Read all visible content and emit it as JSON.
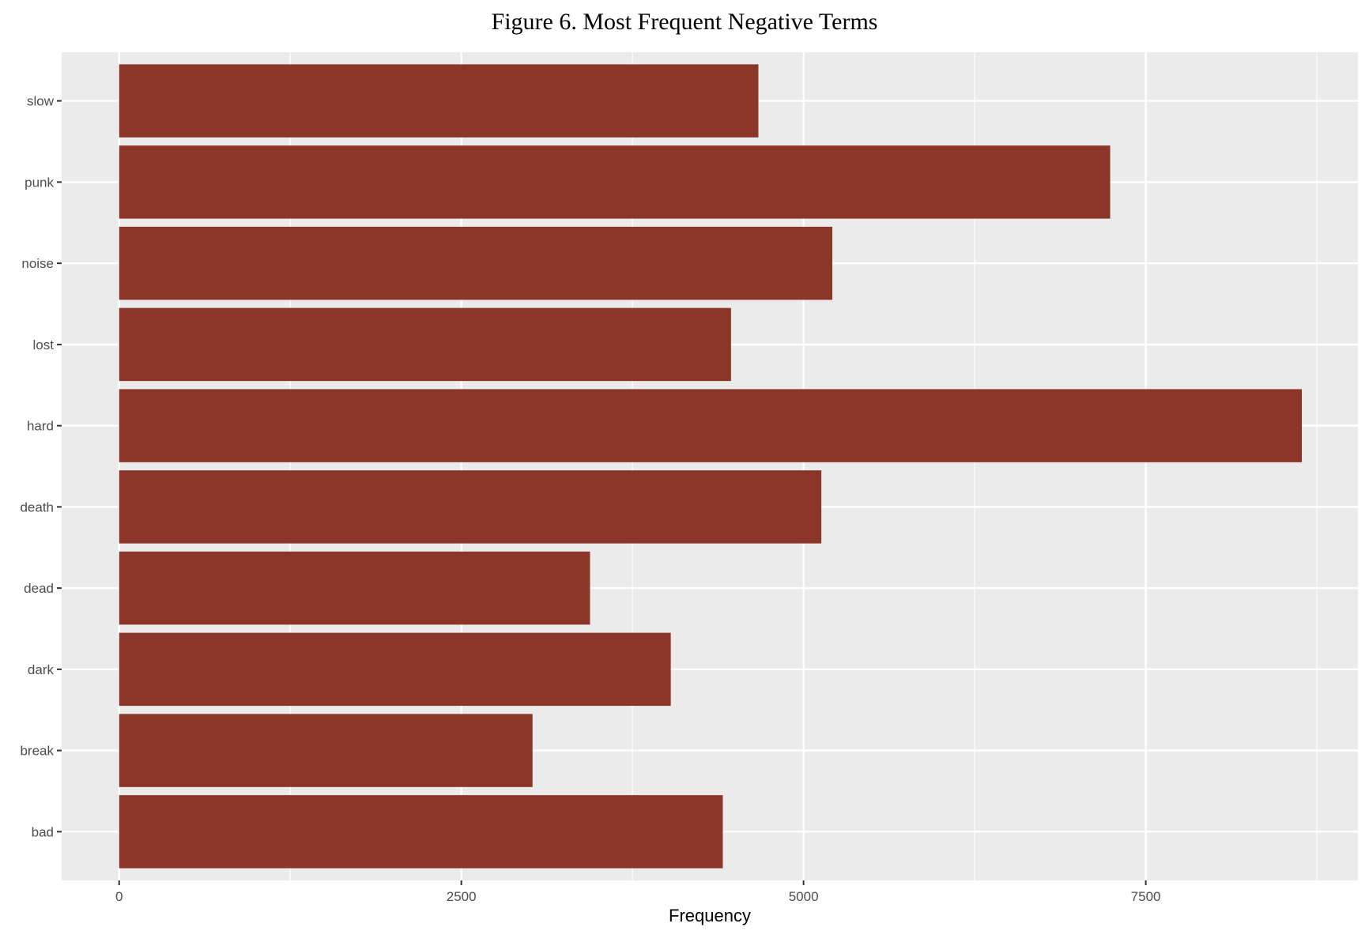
{
  "chart_data": {
    "type": "bar",
    "orientation": "horizontal",
    "title": "Figure 6. Most Frequent Negative Terms",
    "xlabel": "Frequency",
    "ylabel": "",
    "categories": [
      "slow",
      "punk",
      "noise",
      "lost",
      "hard",
      "death",
      "dead",
      "dark",
      "break",
      "bad"
    ],
    "values": [
      4670,
      7240,
      5210,
      4470,
      8640,
      5130,
      3440,
      4030,
      3020,
      4410
    ],
    "xlim": [
      -420,
      9050
    ],
    "x_ticks": [
      0,
      2500,
      5000,
      7500
    ],
    "x_tick_labels": [
      "0",
      "2500",
      "5000",
      "7500"
    ],
    "grid": true,
    "legend": "none",
    "colors": {
      "bar": "#8B3629",
      "panel_background": "#EBEBEB",
      "gridline": "#FFFFFF"
    }
  }
}
